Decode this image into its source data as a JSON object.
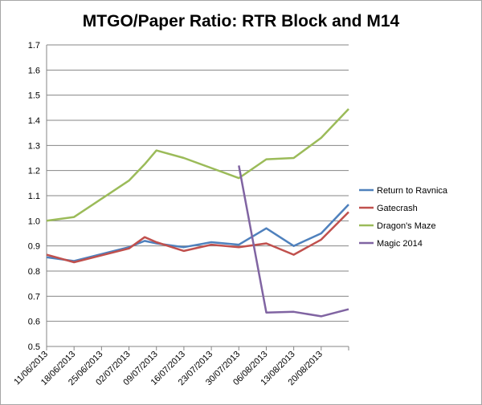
{
  "chart_data": {
    "type": "line",
    "title": "MTGO/Paper Ratio: RTR Block and M14",
    "xlabel": "",
    "ylabel": "",
    "ylim": [
      0.5,
      1.7
    ],
    "yticks": [
      "0.5",
      "0.6",
      "0.7",
      "0.8",
      "0.9",
      "1.0",
      "1.1",
      "1.2",
      "1.3",
      "1.4",
      "1.5",
      "1.6",
      "1.7"
    ],
    "x_tick_labels": [
      "11/06/2013",
      "18/06/2013",
      "25/06/2013",
      "02/07/2013",
      "09/07/2013",
      "16/07/2013",
      "23/07/2013",
      "30/07/2013",
      "06/08/2013",
      "13/08/2013",
      "20/08/2013"
    ],
    "xlim": [
      "11/06/2013",
      "27/08/2013"
    ],
    "grid": "horizontal",
    "legend": "right",
    "series": [
      {
        "name": "Return to Ravnica",
        "color": "#4f81bd",
        "x": [
          "11/06/2013",
          "18/06/2013",
          "02/07/2013",
          "06/07/2013",
          "09/07/2013",
          "16/07/2013",
          "23/07/2013",
          "30/07/2013",
          "06/08/2013",
          "13/08/2013",
          "20/08/2013",
          "27/08/2013"
        ],
        "y": [
          0.855,
          0.84,
          0.895,
          0.92,
          0.91,
          0.895,
          0.915,
          0.905,
          0.97,
          0.9,
          0.95,
          1.065
        ]
      },
      {
        "name": "Gatecrash",
        "color": "#c0504d",
        "x": [
          "11/06/2013",
          "18/06/2013",
          "02/07/2013",
          "06/07/2013",
          "09/07/2013",
          "16/07/2013",
          "23/07/2013",
          "30/07/2013",
          "06/08/2013",
          "13/08/2013",
          "20/08/2013",
          "27/08/2013"
        ],
        "y": [
          0.865,
          0.835,
          0.89,
          0.935,
          0.915,
          0.88,
          0.905,
          0.895,
          0.91,
          0.865,
          0.925,
          1.035
        ]
      },
      {
        "name": "Dragon's Maze",
        "color": "#9bbb59",
        "x": [
          "11/06/2013",
          "18/06/2013",
          "02/07/2013",
          "06/07/2013",
          "09/07/2013",
          "16/07/2013",
          "23/07/2013",
          "30/07/2013",
          "06/08/2013",
          "13/08/2013",
          "20/08/2013",
          "27/08/2013"
        ],
        "y": [
          1.0,
          1.015,
          1.16,
          1.225,
          1.28,
          1.25,
          1.21,
          1.17,
          1.245,
          1.25,
          1.33,
          1.445
        ]
      },
      {
        "name": "Magic 2014",
        "color": "#8064a2",
        "x": [
          "30/07/2013",
          "06/08/2013",
          "13/08/2013",
          "20/08/2013",
          "27/08/2013"
        ],
        "y": [
          1.22,
          0.635,
          0.638,
          0.62,
          0.648
        ]
      }
    ]
  }
}
